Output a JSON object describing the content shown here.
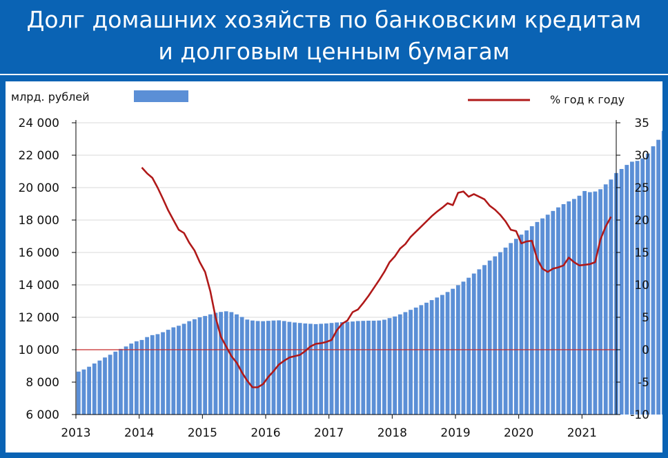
{
  "title": {
    "line1": "Долг домашних хозяйств по банковским кредитам",
    "line2": "и долговым ценным бумагам"
  },
  "colors": {
    "background": "#0a63b4",
    "bars": "#5b8fd6",
    "line": "#b01919",
    "zero_line": "#c62828"
  },
  "chart_data": {
    "type": "bar+line",
    "legend": {
      "bars_label": "млрд. рублей",
      "line_label": "%  год к году",
      "placement": "top"
    },
    "x_ticks": [
      "2013",
      "2014",
      "2015",
      "2016",
      "2017",
      "2018",
      "2019",
      "2020",
      "2021"
    ],
    "y_left": {
      "range": [
        6000,
        24000
      ],
      "ticks": [
        "6 000",
        "8 000",
        "10 000",
        "12 000",
        "14 000",
        "16 000",
        "18 000",
        "20 000",
        "22 000",
        "24 000"
      ],
      "tick_values": [
        6000,
        8000,
        10000,
        12000,
        14000,
        16000,
        18000,
        20000,
        22000,
        24000
      ]
    },
    "y_right": {
      "range": [
        -10,
        35
      ],
      "ticks": [
        "-10",
        "-5",
        "0",
        "5",
        "10",
        "15",
        "20",
        "25",
        "30",
        "35"
      ],
      "tick_values": [
        -10,
        -5,
        0,
        5,
        10,
        15,
        20,
        25,
        30,
        35
      ]
    },
    "grid": true,
    "series": [
      {
        "name": "млрд. рублей",
        "axis": "left",
        "type": "bar",
        "start": "2013-01",
        "frequency": "monthly",
        "values": [
          8650,
          8780,
          8950,
          9150,
          9330,
          9520,
          9690,
          9880,
          10050,
          10200,
          10380,
          10520,
          10600,
          10780,
          10900,
          10960,
          11080,
          11230,
          11380,
          11480,
          11600,
          11760,
          11880,
          12000,
          12080,
          12180,
          12280,
          12330,
          12370,
          12320,
          12180,
          12020,
          11860,
          11800,
          11770,
          11760,
          11780,
          11800,
          11810,
          11770,
          11720,
          11680,
          11650,
          11620,
          11600,
          11580,
          11600,
          11620,
          11650,
          11680,
          11700,
          11720,
          11740,
          11770,
          11780,
          11790,
          11790,
          11800,
          11850,
          11950,
          12050,
          12180,
          12320,
          12460,
          12600,
          12750,
          12900,
          13060,
          13220,
          13380,
          13560,
          13760,
          13980,
          14200,
          14440,
          14700,
          14960,
          15220,
          15500,
          15760,
          16020,
          16300,
          16580,
          16840,
          17100,
          17360,
          17620,
          17880,
          18100,
          18330,
          18560,
          18780,
          18980,
          19150,
          19300,
          19500,
          19790,
          19720,
          19760,
          19900,
          20200,
          20500,
          20900,
          21150,
          21400,
          21600,
          21650,
          21800,
          22100,
          22550,
          22950,
          23500,
          24050
        ]
      },
      {
        "name": "%  год к году",
        "axis": "right",
        "type": "line",
        "start": "2014-01",
        "frequency": "monthly",
        "values": [
          28.1,
          27.2,
          26.5,
          25.0,
          23.3,
          21.5,
          20.0,
          18.5,
          18.0,
          16.5,
          15.3,
          13.5,
          12.0,
          9.0,
          5.0,
          2.0,
          0.5,
          -1.0,
          -2.0,
          -3.5,
          -4.8,
          -5.8,
          -5.8,
          -5.3,
          -4.2,
          -3.3,
          -2.3,
          -1.7,
          -1.2,
          -1.0,
          -0.8,
          -0.2,
          0.5,
          0.9,
          1.0,
          1.2,
          1.5,
          3.0,
          4.0,
          4.5,
          5.8,
          6.2,
          7.2,
          8.3,
          9.5,
          10.7,
          12.0,
          13.5,
          14.4,
          15.6,
          16.3,
          17.4,
          18.2,
          19.0,
          19.8,
          20.6,
          21.3,
          21.9,
          22.6,
          22.3,
          24.2,
          24.4,
          23.6,
          24.0,
          23.6,
          23.2,
          22.2,
          21.6,
          20.8,
          19.8,
          18.5,
          18.3,
          16.4,
          16.7,
          16.8,
          14.0,
          12.5,
          12.0,
          12.5,
          12.7,
          13.0,
          14.2,
          13.5,
          13.0,
          13.1,
          13.2,
          13.5,
          17.0,
          19.0,
          20.5
        ]
      }
    ]
  }
}
